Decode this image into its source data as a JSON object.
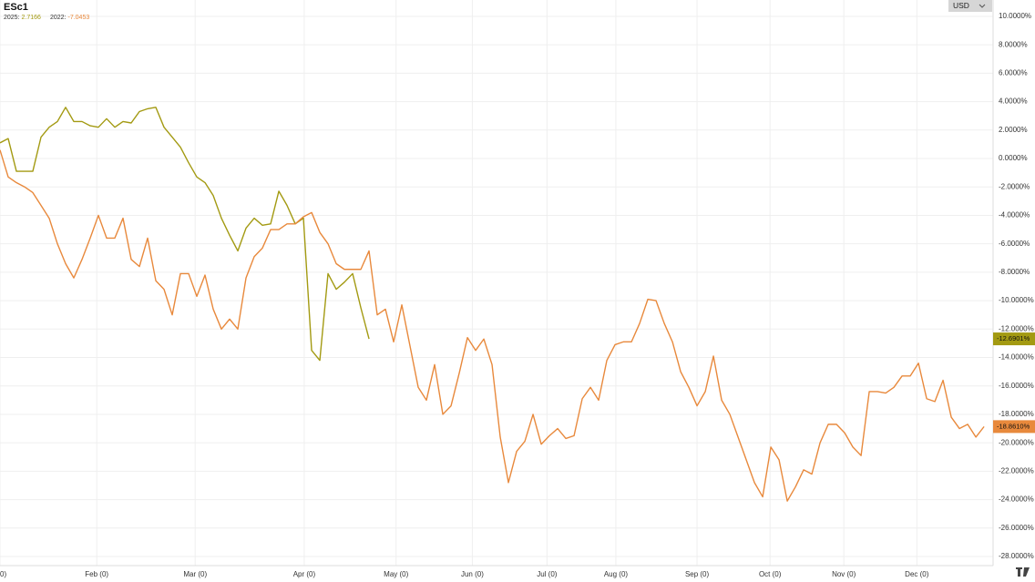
{
  "chart_data": {
    "type": "line",
    "title": "ESc1",
    "x": [
      0,
      1,
      2,
      3,
      4,
      5,
      6,
      7,
      8,
      9,
      10,
      11,
      12,
      13,
      14,
      15,
      16,
      17,
      18,
      19,
      20,
      21,
      22,
      23,
      24,
      25,
      26,
      27,
      28,
      29,
      30,
      31,
      32,
      33,
      34,
      35,
      36,
      37,
      38,
      39,
      40,
      41,
      42,
      43,
      44,
      45,
      46,
      47,
      48,
      49,
      50,
      51,
      52,
      53,
      54,
      55,
      56,
      57,
      58,
      59,
      60,
      61,
      62,
      63,
      64,
      65,
      66,
      67,
      68,
      69,
      70,
      71,
      72,
      73,
      74,
      75,
      76,
      77,
      78,
      79,
      80,
      81,
      82,
      83,
      84,
      85,
      86,
      87,
      88,
      89,
      90,
      91,
      92,
      93,
      94,
      95,
      96,
      97,
      98,
      99,
      100,
      101,
      102,
      103,
      104,
      105,
      106,
      107,
      108,
      109,
      110,
      111,
      112,
      113,
      114,
      115,
      116,
      117,
      118,
      119,
      120
    ],
    "series": [
      {
        "name": "2025:",
        "legend_value": 2.7166,
        "color": "#a39a12",
        "last_value_label": "-12.6901%",
        "values": [
          1.1,
          1.4,
          -0.9,
          -0.9,
          -0.9,
          1.5,
          2.2,
          2.6,
          3.6,
          2.6,
          2.6,
          2.3,
          2.2,
          2.8,
          2.2,
          2.6,
          2.5,
          3.3,
          3.5,
          3.6,
          2.2,
          1.5,
          0.8,
          -0.3,
          -1.3,
          -1.7,
          -2.6,
          -4.2,
          -5.4,
          -6.5,
          -4.9,
          -4.2,
          -4.7,
          -4.6,
          -2.3,
          -3.3,
          -4.6,
          -4.2,
          -13.5,
          -14.2,
          -8.1,
          -9.2,
          -8.7,
          -8.1,
          -10.5,
          -12.6901,
          null,
          null,
          null,
          null,
          null,
          null,
          null,
          null,
          null,
          null,
          null,
          null,
          null,
          null,
          null,
          null,
          null,
          null,
          null,
          null,
          null,
          null,
          null,
          null,
          null,
          null,
          null,
          null,
          null,
          null,
          null,
          null,
          null,
          null,
          null,
          null,
          null,
          null,
          null,
          null,
          null,
          null,
          null,
          null,
          null,
          null,
          null,
          null,
          null,
          null,
          null,
          null,
          null,
          null,
          null,
          null,
          null,
          null,
          null,
          null,
          null,
          null,
          null,
          null,
          null,
          null,
          null,
          null,
          null,
          null,
          null,
          null,
          null,
          null,
          null
        ]
      },
      {
        "name": "2022:",
        "legend_value": -7.0453,
        "color": "#e8893c",
        "last_value_label": "-18.8610%",
        "values": [
          0.6,
          -1.3,
          -1.7,
          -2.0,
          -2.4,
          -3.3,
          -4.2,
          -6.0,
          -7.4,
          -8.4,
          -7.1,
          -5.6,
          -4.0,
          -5.6,
          -5.6,
          -4.2,
          -7.1,
          -7.6,
          -5.6,
          -8.6,
          -9.2,
          -11.0,
          -8.1,
          -8.1,
          -9.7,
          -8.2,
          -10.6,
          -12.0,
          -11.3,
          -12.0,
          -8.4,
          -6.9,
          -6.3,
          -5.0,
          -5.0,
          -4.6,
          -4.6,
          -4.1,
          -3.8,
          -5.2,
          -6.0,
          -7.4,
          -7.8,
          -7.8,
          -7.8,
          -6.5,
          -11.0,
          -10.6,
          -12.9,
          -10.3,
          -13.2,
          -16.1,
          -17.0,
          -14.5,
          -18.0,
          -17.4,
          -15.1,
          -12.6,
          -13.5,
          -12.7,
          -14.5,
          -19.6,
          -22.8,
          -20.6,
          -19.9,
          -18.0,
          -20.1,
          -19.5,
          -19.0,
          -19.7,
          -19.5,
          -16.9,
          -16.1,
          -17.0,
          -14.2,
          -13.1,
          -12.9,
          -12.9,
          -11.6,
          -9.9,
          -10.0,
          -11.6,
          -12.9,
          -15.0,
          -16.1,
          -17.4,
          -16.4,
          -13.9,
          -17.0,
          -18.0,
          -19.6,
          -21.2,
          -22.8,
          -23.8,
          -20.3,
          -21.2,
          -24.1,
          -23.1,
          -21.9,
          -22.2,
          -20.0,
          -18.7,
          -18.7,
          -19.3,
          -20.3,
          -20.9,
          -16.4,
          -16.4,
          -16.5,
          -16.1,
          -15.3,
          -15.3,
          -14.4,
          -16.9,
          -17.1,
          -15.6,
          -18.2,
          -19.0,
          -18.7,
          -19.6,
          -18.861
        ]
      }
    ],
    "xlim": [
      0,
      121.1
    ],
    "xticks": [
      {
        "value": 0,
        "label": "0)"
      },
      {
        "value": 11.8,
        "label": "Feb (0)"
      },
      {
        "value": 23.8,
        "label": "Mar (0)"
      },
      {
        "value": 37.1,
        "label": "Apr (0)"
      },
      {
        "value": 48.3,
        "label": "May (0)"
      },
      {
        "value": 57.6,
        "label": "Jun (0)"
      },
      {
        "value": 66.7,
        "label": "Jul (0)"
      },
      {
        "value": 75.1,
        "label": "Aug (0)"
      },
      {
        "value": 85,
        "label": "Sep (0)"
      },
      {
        "value": 93.9,
        "label": "Oct (0)"
      },
      {
        "value": 102.9,
        "label": "Nov (0)"
      },
      {
        "value": 111.8,
        "label": "Dec (0)"
      }
    ],
    "ylim": [
      -28.64,
      11.15
    ],
    "yticks": [
      {
        "value": 10,
        "label": "10.0000%"
      },
      {
        "value": 8,
        "label": "8.0000%"
      },
      {
        "value": 6,
        "label": "6.0000%"
      },
      {
        "value": 4,
        "label": "4.0000%"
      },
      {
        "value": 2,
        "label": "2.0000%"
      },
      {
        "value": 0,
        "label": "0.0000%"
      },
      {
        "value": -2,
        "label": "-2.0000%"
      },
      {
        "value": -4,
        "label": "-4.0000%"
      },
      {
        "value": -6,
        "label": "-6.0000%"
      },
      {
        "value": -8,
        "label": "-8.0000%"
      },
      {
        "value": -10,
        "label": "-10.0000%"
      },
      {
        "value": -12,
        "label": "-12.0000%"
      },
      {
        "value": -14,
        "label": "-14.0000%"
      },
      {
        "value": -16,
        "label": "-16.0000%"
      },
      {
        "value": -18,
        "label": "-18.0000%"
      },
      {
        "value": -20,
        "label": "-20.0000%"
      },
      {
        "value": -22,
        "label": "-22.0000%"
      },
      {
        "value": -24,
        "label": "-24.0000%"
      },
      {
        "value": -26,
        "label": "-26.0000%"
      },
      {
        "value": -28,
        "label": "-28.0000%"
      }
    ],
    "grid": true,
    "currency": "USD"
  }
}
